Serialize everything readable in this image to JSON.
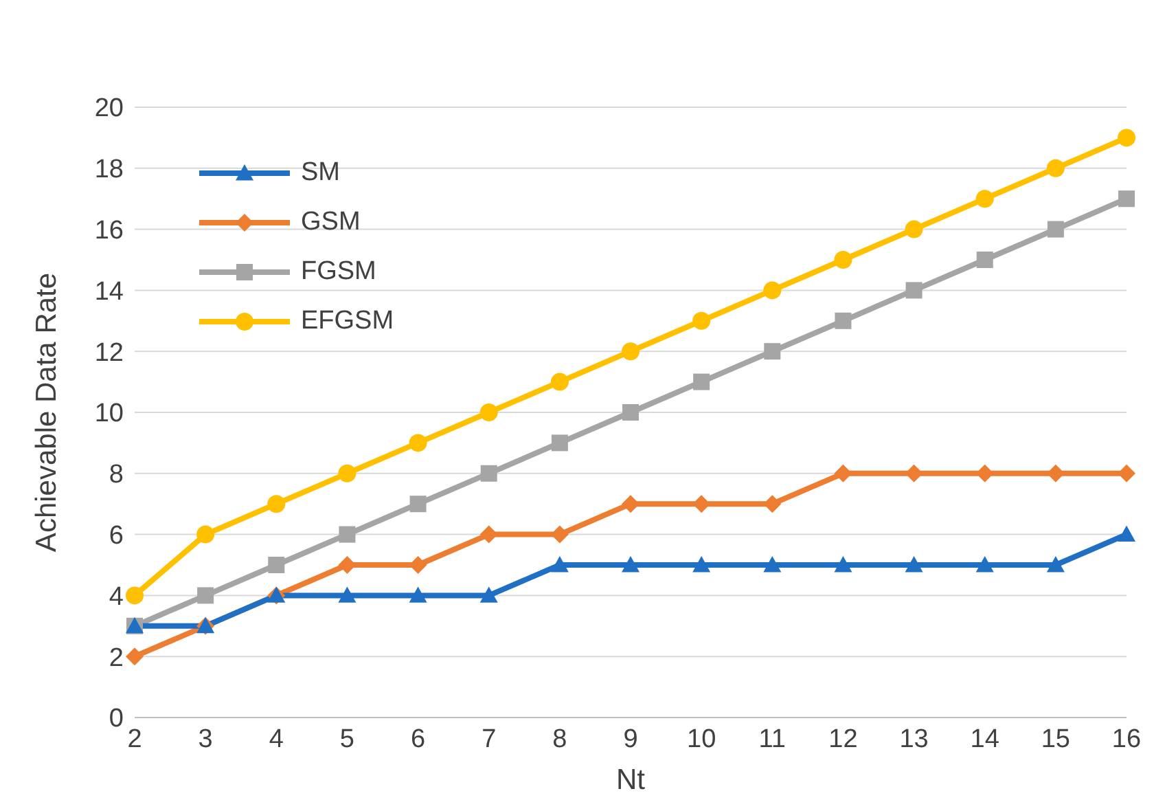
{
  "chart_data": {
    "type": "line",
    "xlabel": "Nt",
    "ylabel": "Achievable Data Rate",
    "categories": [
      "2",
      "3",
      "4",
      "5",
      "6",
      "7",
      "8",
      "9",
      "10",
      "11",
      "12",
      "13",
      "14",
      "15",
      "16"
    ],
    "series": [
      {
        "name": "SM",
        "color": "#1f6fc5",
        "marker": "triangle",
        "values": [
          3,
          3,
          4,
          4,
          4,
          4,
          5,
          5,
          5,
          5,
          5,
          5,
          5,
          5,
          6
        ]
      },
      {
        "name": "GSM",
        "color": "#ed7d31",
        "marker": "diamond",
        "values": [
          2,
          3,
          4,
          5,
          5,
          6,
          6,
          7,
          7,
          7,
          8,
          8,
          8,
          8,
          8
        ]
      },
      {
        "name": "FGSM",
        "color": "#a5a5a5",
        "marker": "square",
        "values": [
          3,
          4,
          5,
          6,
          7,
          8,
          9,
          10,
          11,
          12,
          13,
          14,
          15,
          16,
          17
        ]
      },
      {
        "name": "EFGSM",
        "color": "#ffc000",
        "marker": "circle",
        "values": [
          4,
          6,
          7,
          8,
          9,
          10,
          11,
          12,
          13,
          14,
          15,
          16,
          17,
          18,
          19
        ]
      }
    ],
    "ylim": [
      0,
      20
    ],
    "yticks": [
      0,
      2,
      4,
      6,
      8,
      10,
      12,
      14,
      16,
      18,
      20
    ],
    "grid": "y",
    "legend": "top left",
    "line_style": "solid"
  }
}
